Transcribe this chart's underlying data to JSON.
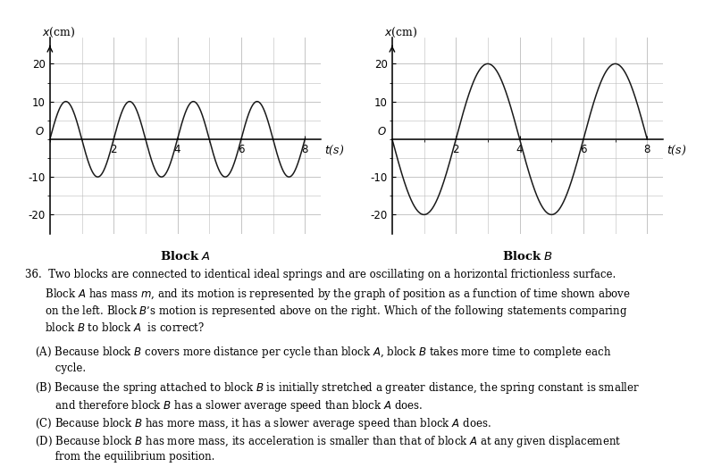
{
  "block_A_amplitude": 10,
  "block_A_period": 2.0,
  "block_B_amplitude": 20,
  "block_B_period": 4.0,
  "xlim": [
    0,
    8.5
  ],
  "ylim": [
    -25,
    27
  ],
  "xticks": [
    2,
    4,
    6,
    8
  ],
  "yticks": [
    -20,
    -10,
    10,
    20
  ],
  "line_color": "#1a1a1a",
  "grid_color": "#bbbbbb",
  "tick_fontsize": 8.5,
  "label_fontsize": 9.0,
  "block_label_fontsize": 9.5,
  "text_fontsize": 8.5,
  "q_line1": "36.  Two blocks are connected to identical ideal springs and are oscillating on a horizontal frictionless surface.",
  "q_line2": "      Block $A$ has mass $m$, and its motion is represented by the graph of position as a function of time shown above",
  "q_line3": "      on the left. Block $B$’s motion is represented above on the right. Which of the following statements comparing",
  "q_line4": "      block $B$ to block $A$  is correct?",
  "cA_1": "   (A) Because block $B$ covers more distance per cycle than block $A$, block $B$ takes more time to complete each",
  "cA_2": "         cycle.",
  "cB_1": "   (B) Because the spring attached to block $B$ is initially stretched a greater distance, the spring constant is smaller",
  "cB_2": "         and therefore block $B$ has a slower average speed than block $A$ does.",
  "cC_1": "   (C) Because block $B$ has more mass, it has a slower average speed than block $A$ does.",
  "cD_1": "   (D) Because block $B$ has more mass, its acceleration is smaller than that of block $A$ at any given displacement",
  "cD_2": "         from the equilibrium position."
}
